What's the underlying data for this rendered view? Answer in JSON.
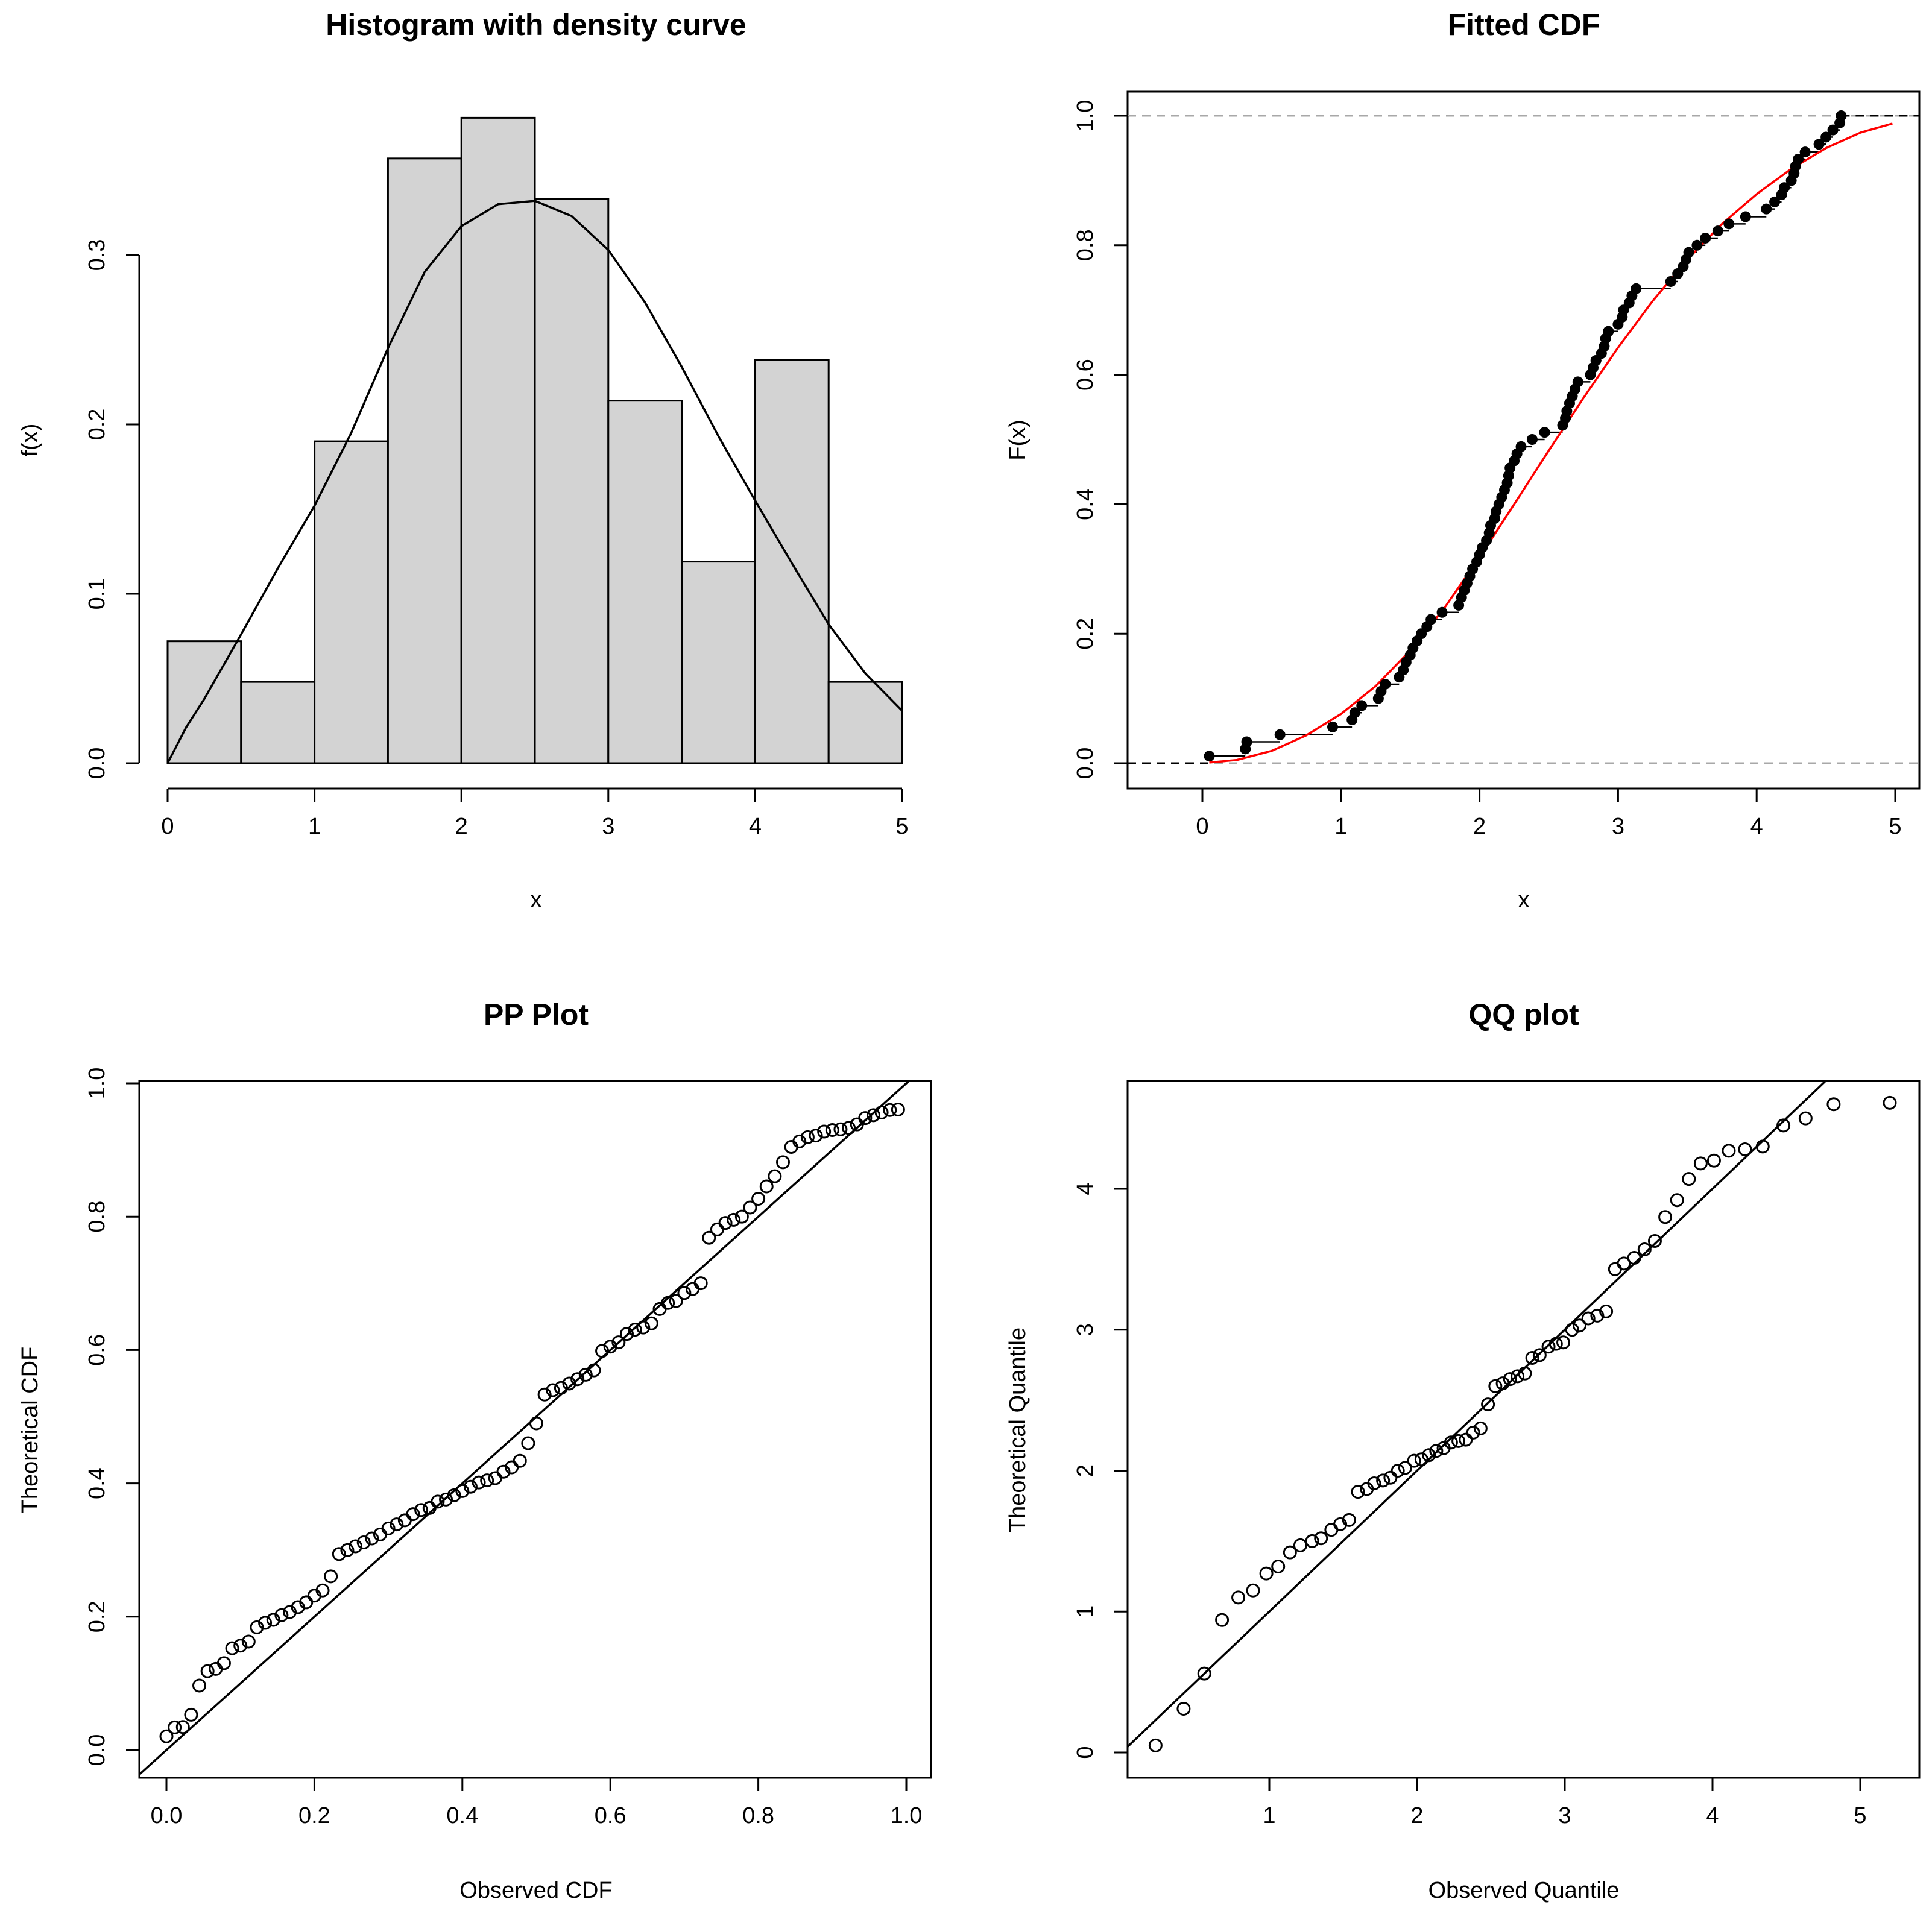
{
  "chart_data": [
    {
      "panel": "histogram",
      "type": "bar",
      "title": "Histogram with density curve",
      "xlabel": "x",
      "ylabel": "f(x)",
      "xlim": [
        0,
        5
      ],
      "ylim": [
        0,
        0.36
      ],
      "xticks": [
        "0",
        "1",
        "2",
        "3",
        "4",
        "5"
      ],
      "yticks": [
        "0.0",
        "0.1",
        "0.2",
        "0.3"
      ],
      "bins": [
        [
          0,
          0.5
        ],
        [
          0.5,
          1
        ],
        [
          1,
          1.5
        ],
        [
          1.5,
          2
        ],
        [
          2,
          2.5
        ],
        [
          2.5,
          3
        ],
        [
          3,
          3.5
        ],
        [
          3.5,
          4
        ],
        [
          4,
          4.5
        ],
        [
          4.5,
          5
        ]
      ],
      "values": [
        0.072,
        0.048,
        0.19,
        0.357,
        0.381,
        0.333,
        0.214,
        0.119,
        0.238,
        0.048
      ],
      "bar_color": "#d3d3d3",
      "density_curve": {
        "x": [
          0,
          0.125,
          0.25,
          0.5,
          0.75,
          1,
          1.25,
          1.5,
          1.75,
          2,
          2.25,
          2.5,
          2.75,
          3,
          3.25,
          3.5,
          3.75,
          4,
          4.25,
          4.5,
          4.75,
          5
        ],
        "y": [
          0,
          0.021,
          0.038,
          0.076,
          0.115,
          0.152,
          0.195,
          0.245,
          0.29,
          0.317,
          0.33,
          0.332,
          0.323,
          0.303,
          0.272,
          0.234,
          0.193,
          0.155,
          0.118,
          0.082,
          0.053,
          0.031
        ]
      }
    },
    {
      "panel": "cdf",
      "type": "line",
      "title": "Fitted CDF",
      "xlabel": "x",
      "ylabel": "F(x)",
      "xlim": [
        -0.5,
        5.2
      ],
      "ylim": [
        -0.04,
        1.04
      ],
      "xticks": [
        "0",
        "1",
        "2",
        "3",
        "4",
        "5"
      ],
      "yticks": [
        "0.0",
        "0.2",
        "0.4",
        "0.6",
        "0.8",
        "1.0"
      ],
      "reference_lines": [
        0,
        1
      ],
      "ecdf": {
        "x": [
          0.05,
          0.31,
          0.32,
          0.56,
          0.94,
          1.08,
          1.1,
          1.15,
          1.27,
          1.29,
          1.32,
          1.42,
          1.45,
          1.47,
          1.5,
          1.52,
          1.55,
          1.58,
          1.62,
          1.65,
          1.73,
          1.85,
          1.87,
          1.89,
          1.91,
          1.93,
          1.95,
          1.98,
          2.0,
          2.02,
          2.05,
          2.07,
          2.08,
          2.11,
          2.12,
          2.14,
          2.16,
          2.18,
          2.2,
          2.21,
          2.22,
          2.25,
          2.27,
          2.3,
          2.38,
          2.47,
          2.6,
          2.62,
          2.63,
          2.65,
          2.67,
          2.69,
          2.71,
          2.8,
          2.82,
          2.84,
          2.88,
          2.9,
          2.91,
          2.93,
          3.0,
          3.03,
          3.04,
          3.08,
          3.1,
          3.13,
          3.38,
          3.43,
          3.47,
          3.49,
          3.51,
          3.57,
          3.63,
          3.72,
          3.8,
          3.92,
          4.07,
          4.13,
          4.18,
          4.2,
          4.25,
          4.27,
          4.28,
          4.3,
          4.35,
          4.45,
          4.5,
          4.55,
          4.6,
          4.61
        ],
        "y": [
          0.011,
          0.022,
          0.033,
          0.044,
          0.056,
          0.067,
          0.078,
          0.089,
          0.1,
          0.111,
          0.122,
          0.133,
          0.144,
          0.156,
          0.167,
          0.178,
          0.189,
          0.2,
          0.211,
          0.222,
          0.233,
          0.244,
          0.256,
          0.267,
          0.278,
          0.289,
          0.3,
          0.311,
          0.322,
          0.333,
          0.344,
          0.356,
          0.367,
          0.378,
          0.389,
          0.4,
          0.411,
          0.422,
          0.433,
          0.444,
          0.456,
          0.467,
          0.478,
          0.489,
          0.5,
          0.511,
          0.522,
          0.533,
          0.544,
          0.556,
          0.567,
          0.578,
          0.589,
          0.6,
          0.611,
          0.622,
          0.633,
          0.644,
          0.656,
          0.667,
          0.678,
          0.689,
          0.7,
          0.711,
          0.722,
          0.733,
          0.744,
          0.756,
          0.767,
          0.778,
          0.789,
          0.8,
          0.811,
          0.822,
          0.833,
          0.844,
          0.856,
          0.867,
          0.878,
          0.889,
          0.9,
          0.911,
          0.922,
          0.933,
          0.944,
          0.956,
          0.967,
          0.978,
          0.989,
          1.0
        ]
      },
      "fitted_cdf": {
        "x": [
          0.05,
          0.25,
          0.5,
          0.75,
          1.0,
          1.25,
          1.5,
          1.75,
          2.0,
          2.25,
          2.5,
          2.75,
          3.0,
          3.25,
          3.5,
          3.75,
          4.0,
          4.25,
          4.5,
          4.75,
          4.98
        ],
        "y": [
          0.001,
          0.005,
          0.019,
          0.043,
          0.076,
          0.119,
          0.174,
          0.241,
          0.318,
          0.4,
          0.483,
          0.564,
          0.642,
          0.714,
          0.778,
          0.833,
          0.879,
          0.918,
          0.95,
          0.974,
          0.988
        ]
      },
      "fitted_color": "#ff0000"
    },
    {
      "panel": "pp",
      "type": "scatter",
      "title": "PP Plot",
      "xlabel": "Observed CDF",
      "ylabel": "Theoretical CDF",
      "xlim": [
        -0.04,
        1.04
      ],
      "ylim": [
        -0.04,
        1.04
      ],
      "xticks": [
        "0.0",
        "0.2",
        "0.4",
        "0.6",
        "0.8",
        "1.0"
      ],
      "yticks": [
        "0.0",
        "0.2",
        "0.4",
        "0.6",
        "0.8",
        "1.0"
      ],
      "reference_line": [
        [
          -0.05,
          -0.05
        ],
        [
          1.05,
          1.05
        ]
      ]
    },
    {
      "panel": "qq",
      "type": "scatter",
      "title": "QQ plot",
      "xlabel": "Observed Quantile",
      "ylabel": "Theoretical Quantile",
      "xlim": [
        0.04,
        5.44
      ],
      "ylim": [
        -0.14,
        4.76
      ],
      "xticks": [
        "1",
        "2",
        "3",
        "4",
        "5"
      ],
      "yticks": [
        "0",
        "1",
        "2",
        "3",
        "4"
      ],
      "reference_line": [
        [
          0,
          0
        ],
        [
          5.5,
          5.5
        ]
      ],
      "observed_quantiles": [
        0.23,
        0.42,
        0.56,
        0.68,
        0.79,
        0.89,
        0.98,
        1.06,
        1.14,
        1.21,
        1.29,
        1.35,
        1.42,
        1.48,
        1.54,
        1.6,
        1.66,
        1.71,
        1.77,
        1.82,
        1.87,
        1.92,
        1.98,
        2.03,
        2.08,
        2.13,
        2.18,
        2.23,
        2.28,
        2.33,
        2.38,
        2.43,
        2.48,
        2.53,
        2.58,
        2.63,
        2.68,
        2.73,
        2.78,
        2.83,
        2.89,
        2.94,
        2.99,
        3.05,
        3.1,
        3.16,
        3.22,
        3.28,
        3.34,
        3.4,
        3.47,
        3.54,
        3.61,
        3.68,
        3.76,
        3.84,
        3.92,
        4.01,
        4.11,
        4.22,
        4.34,
        4.48,
        4.63,
        4.82,
        5.2
      ]
    }
  ]
}
